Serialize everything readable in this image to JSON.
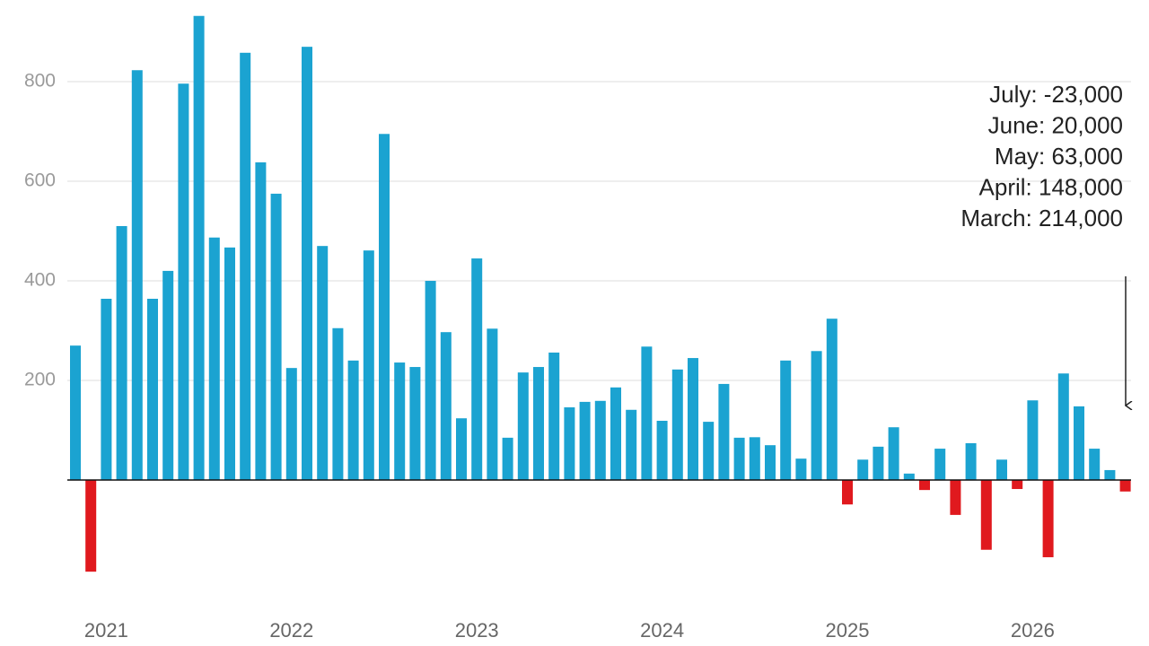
{
  "chart_data": {
    "type": "bar",
    "categories": [
      null,
      null,
      "2021",
      null,
      null,
      null,
      null,
      null,
      null,
      null,
      null,
      null,
      null,
      null,
      "2022",
      null,
      null,
      null,
      null,
      null,
      null,
      null,
      null,
      null,
      null,
      null,
      "2023",
      null,
      null,
      null,
      null,
      null,
      null,
      null,
      null,
      null,
      null,
      null,
      "2024",
      null,
      null,
      null,
      null,
      null,
      null,
      null,
      null,
      null,
      null,
      null,
      "2025",
      null,
      null,
      null,
      null,
      null,
      null,
      null,
      null,
      null,
      null,
      null,
      "2026",
      null,
      null,
      null,
      null,
      null,
      null
    ],
    "values": [
      270,
      -184,
      364,
      510,
      823,
      364,
      420,
      796,
      932,
      487,
      467,
      858,
      638,
      575,
      225,
      870,
      470,
      305,
      240,
      461,
      695,
      236,
      227,
      400,
      297,
      124,
      445,
      304,
      85,
      216,
      227,
      256,
      146,
      157,
      159,
      186,
      141,
      268,
      119,
      222,
      245,
      117,
      193,
      85,
      86,
      70,
      240,
      43,
      259,
      324,
      -49,
      41,
      67,
      106,
      13,
      -20,
      63,
      -70,
      74,
      -140,
      41,
      -18,
      160,
      -155,
      214,
      148,
      63,
      20,
      -23
    ],
    "color": "#1ba3d1",
    "negative_color": "#e0191e",
    "ylim": [
      -270,
      960
    ],
    "yticks": [
      200,
      400,
      600,
      800
    ],
    "grid": true,
    "annotations": [
      "July: -23,000",
      "June: 20,000",
      "May: 63,000",
      "April: 148,000",
      "March: 214,000"
    ]
  }
}
